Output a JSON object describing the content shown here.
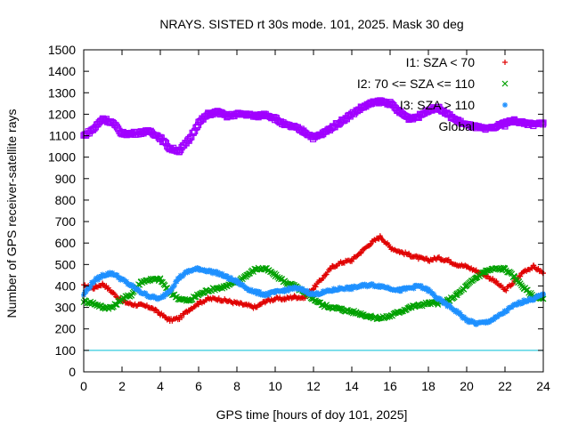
{
  "chart_data": {
    "type": "scatter",
    "title": "NRAYS. SISTED rt 30s mode. 101, 2025. Mask 30 deg",
    "xlabel": "GPS time [hours of doy 101, 2025]",
    "ylabel": "Number of GPS receiver-satellite rays",
    "xlim": [
      0,
      24
    ],
    "ylim": [
      0,
      1500
    ],
    "xticks": [
      0,
      2,
      4,
      6,
      8,
      10,
      12,
      14,
      16,
      18,
      20,
      22,
      24
    ],
    "yticks": [
      0,
      100,
      200,
      300,
      400,
      500,
      600,
      700,
      800,
      900,
      1000,
      1100,
      1200,
      1300,
      1400,
      1500
    ],
    "legend_position": "top-right",
    "reference_line": {
      "y": 100,
      "color": "#00bfd8"
    },
    "series": [
      {
        "name": "I1: SZA < 70",
        "color": "#e00000",
        "marker": "+",
        "x": [
          0,
          0.5,
          1,
          1.5,
          2,
          2.5,
          3,
          3.5,
          4,
          4.5,
          5,
          5.5,
          6,
          6.5,
          7,
          7.5,
          8,
          8.5,
          9,
          9.5,
          10,
          10.5,
          11,
          11.5,
          12,
          12.5,
          13,
          13.5,
          14,
          14.5,
          15,
          15.5,
          16,
          16.5,
          17,
          17.5,
          18,
          18.5,
          19,
          19.5,
          20,
          20.5,
          21,
          21.5,
          22,
          22.5,
          23,
          23.5,
          24
        ],
        "y": [
          400,
          390,
          410,
          370,
          330,
          315,
          310,
          300,
          270,
          240,
          250,
          290,
          320,
          340,
          340,
          330,
          320,
          310,
          300,
          330,
          340,
          340,
          350,
          345,
          390,
          440,
          490,
          510,
          520,
          560,
          600,
          630,
          580,
          560,
          545,
          530,
          520,
          530,
          520,
          500,
          490,
          470,
          450,
          420,
          380,
          420,
          470,
          490,
          460
        ]
      },
      {
        "name": "I2: 70 <= SZA <= 110",
        "color": "#00a000",
        "marker": "x",
        "x": [
          0,
          0.5,
          1,
          1.5,
          2,
          2.5,
          3,
          3.5,
          4,
          4.5,
          5,
          5.5,
          6,
          6.5,
          7,
          7.5,
          8,
          8.5,
          9,
          9.5,
          10,
          10.5,
          11,
          11.5,
          12,
          12.5,
          13,
          13.5,
          14,
          14.5,
          15,
          15.5,
          16,
          16.5,
          17,
          17.5,
          18,
          18.5,
          19,
          19.5,
          20,
          20.5,
          21,
          21.5,
          22,
          22.5,
          23,
          23.5,
          24
        ],
        "y": [
          330,
          320,
          300,
          300,
          340,
          360,
          420,
          430,
          430,
          370,
          340,
          330,
          360,
          380,
          390,
          400,
          420,
          450,
          480,
          480,
          450,
          420,
          400,
          370,
          340,
          310,
          300,
          290,
          280,
          270,
          255,
          250,
          260,
          280,
          300,
          310,
          320,
          320,
          330,
          360,
          400,
          440,
          470,
          480,
          480,
          440,
          390,
          350,
          340
        ]
      },
      {
        "name": "I3: SZA > 110",
        "color": "#1e90ff",
        "marker": "*",
        "x": [
          0,
          0.5,
          1,
          1.5,
          2,
          2.5,
          3,
          3.5,
          4,
          4.5,
          5,
          5.5,
          6,
          6.5,
          7,
          7.5,
          8,
          8.5,
          9,
          9.5,
          10,
          10.5,
          11,
          11.5,
          12,
          12.5,
          13,
          13.5,
          14,
          14.5,
          15,
          15.5,
          16,
          16.5,
          17,
          17.5,
          18,
          18.5,
          19,
          19.5,
          20,
          20.5,
          21,
          21.5,
          22,
          22.5,
          23,
          23.5,
          24
        ],
        "y": [
          360,
          420,
          450,
          460,
          430,
          400,
          370,
          350,
          340,
          380,
          440,
          470,
          480,
          470,
          460,
          440,
          420,
          390,
          370,
          360,
          370,
          380,
          390,
          380,
          360,
          370,
          380,
          390,
          390,
          400,
          405,
          400,
          390,
          380,
          390,
          400,
          380,
          340,
          310,
          280,
          240,
          225,
          230,
          250,
          280,
          310,
          330,
          340,
          360
        ]
      },
      {
        "name": "Global",
        "color": "#a000ff",
        "marker": "square",
        "x": [
          0,
          0.5,
          1,
          1.5,
          2,
          2.5,
          3,
          3.5,
          4,
          4.5,
          5,
          5.5,
          6,
          6.5,
          7,
          7.5,
          8,
          8.5,
          9,
          9.5,
          10,
          10.5,
          11,
          11.5,
          12,
          12.5,
          13,
          13.5,
          14,
          14.5,
          15,
          15.5,
          16,
          16.5,
          17,
          17.5,
          18,
          18.5,
          19,
          19.5,
          20,
          20.5,
          21,
          21.5,
          22,
          22.5,
          23,
          23.5,
          24
        ],
        "y": [
          1100,
          1130,
          1180,
          1160,
          1110,
          1110,
          1115,
          1120,
          1090,
          1040,
          1030,
          1080,
          1160,
          1200,
          1210,
          1190,
          1200,
          1200,
          1190,
          1200,
          1180,
          1150,
          1140,
          1120,
          1090,
          1110,
          1140,
          1170,
          1200,
          1230,
          1250,
          1260,
          1250,
          1210,
          1180,
          1190,
          1220,
          1230,
          1200,
          1170,
          1150,
          1140,
          1130,
          1140,
          1160,
          1170,
          1160,
          1150,
          1160
        ]
      }
    ]
  }
}
